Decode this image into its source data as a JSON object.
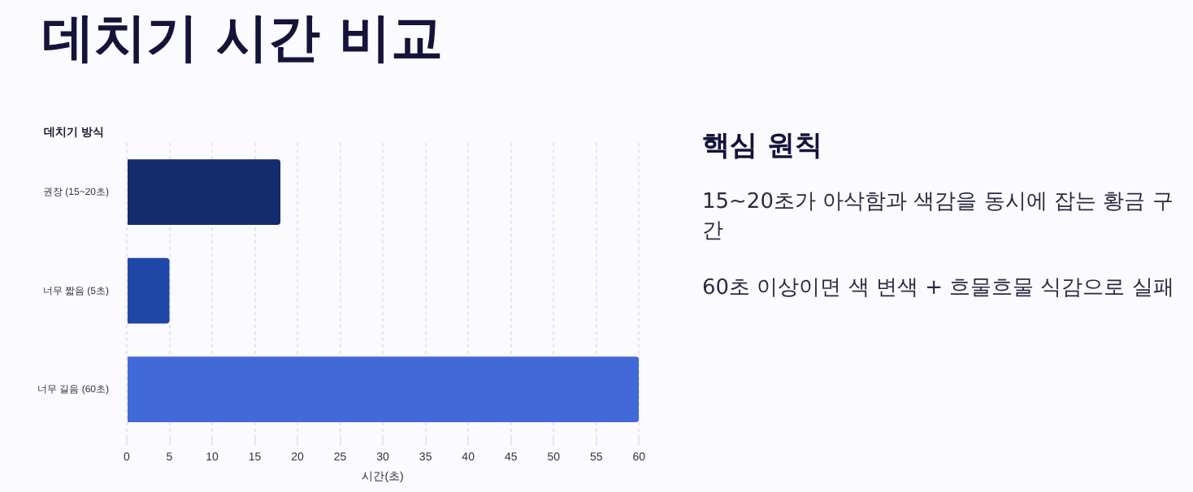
{
  "chart_data": {
    "type": "bar",
    "orientation": "horizontal",
    "title": "데치기 시간 비교",
    "ylabel": "데치기 방식",
    "xlabel": "시간(초)",
    "categories": [
      "권장 (15~20초)",
      "너무 짧음 (5초)",
      "너무 길음 (60초)"
    ],
    "values": [
      18,
      5,
      60
    ],
    "colors": [
      "#142c6b",
      "#1f47a8",
      "#4169d8"
    ],
    "xlim": [
      0,
      60
    ],
    "xticks": [
      0,
      5,
      10,
      15,
      20,
      25,
      30,
      35,
      40,
      45,
      50,
      55,
      60
    ],
    "grid": "x",
    "annotations": [
      "핵심 원칙",
      "15~20초가 아삭함과 색감을 동시에 잡는 황금 구간",
      "60초 이상이면 색 변색 + 흐물흐물 식감으로 실패"
    ]
  }
}
